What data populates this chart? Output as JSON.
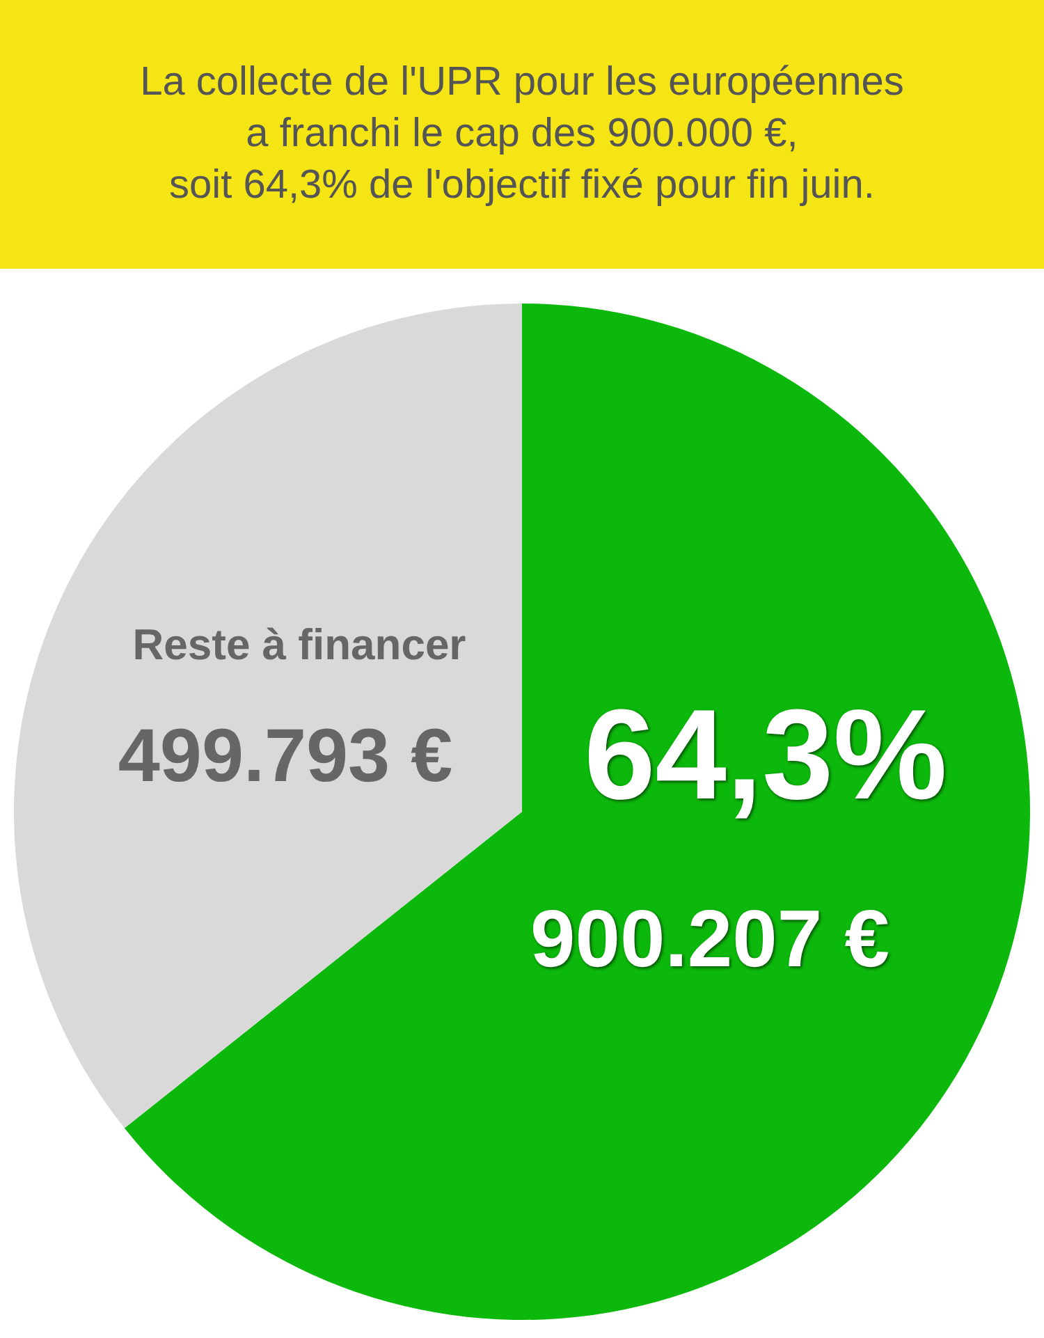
{
  "chart_data": {
    "type": "pie",
    "title": "La collecte de l'UPR pour les européennes\na franchi le cap des 900.000 €,\nsoit 64,3% de l'objectif fixé pour fin juin.",
    "categories": [
      null,
      "Reste à financer"
    ],
    "values": [
      900207,
      499793
    ],
    "colors": [
      "#0cb80c",
      "#d9d9d9"
    ],
    "value_labels": [
      "900.207 €",
      "499.793 €"
    ],
    "annotations": [
      "64,3%"
    ],
    "legend": false
  }
}
